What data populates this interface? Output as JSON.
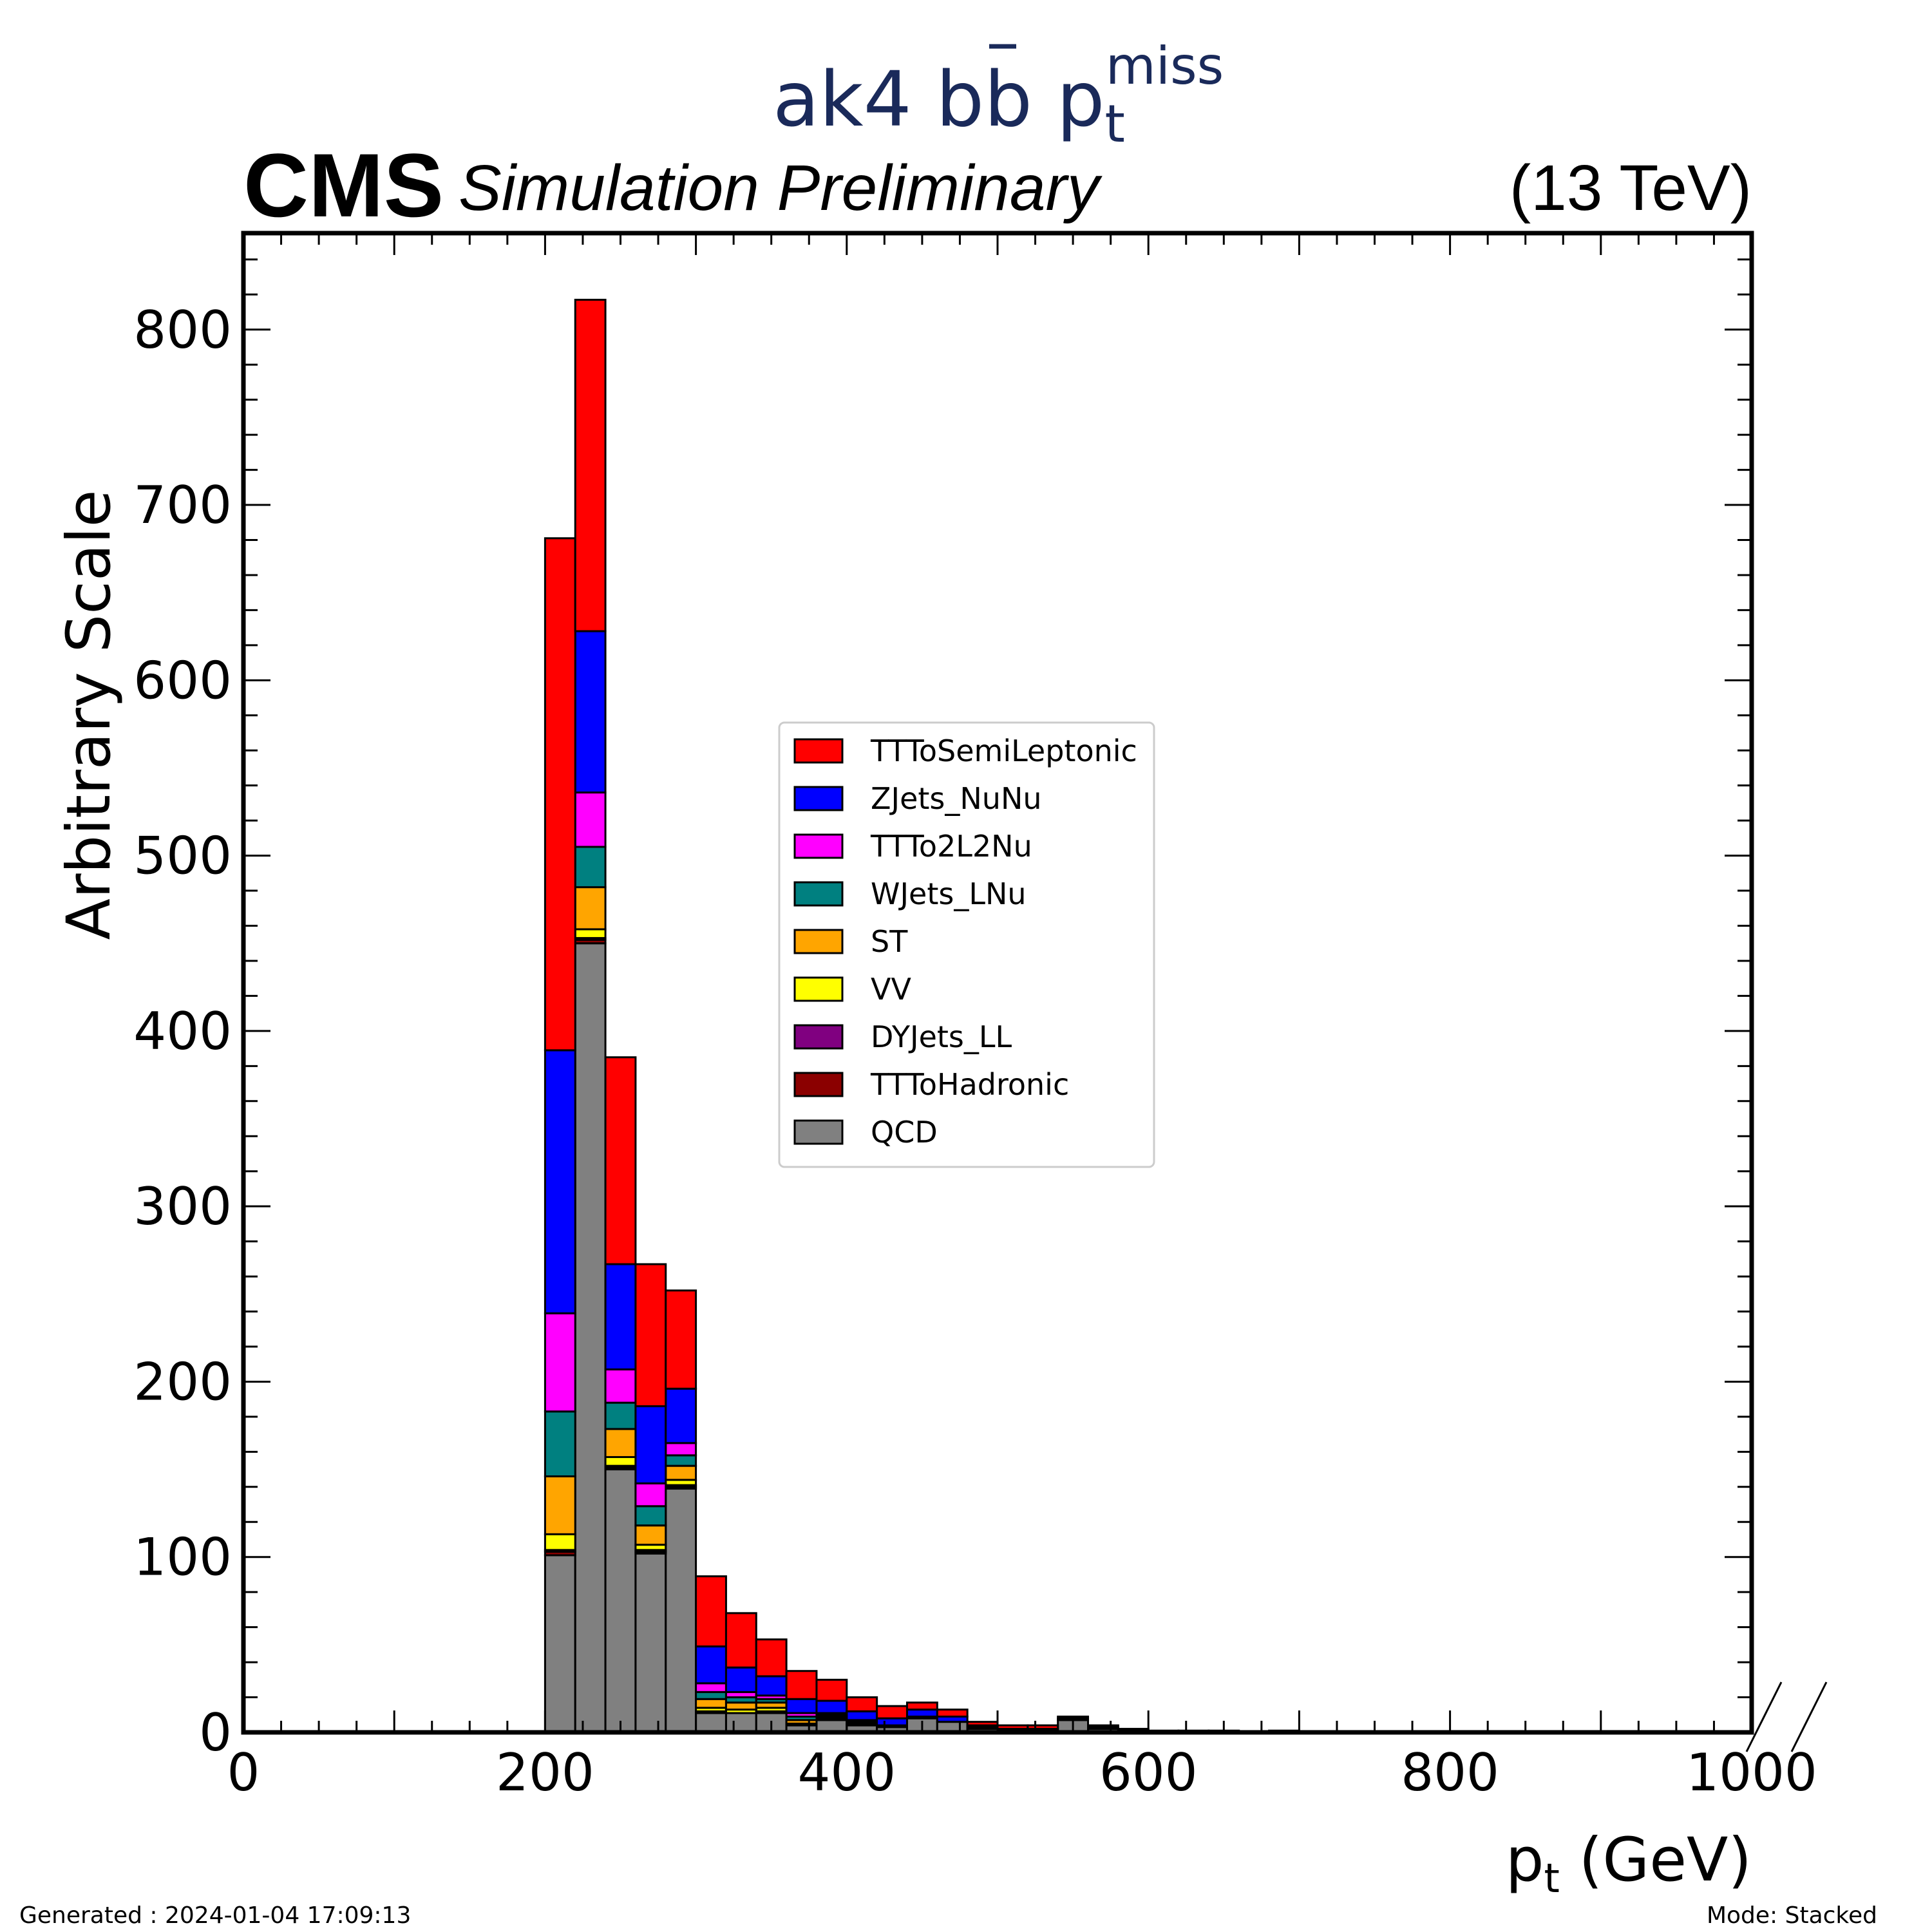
{
  "header": {
    "experiment": "CMS",
    "status": "Simulation Preliminary",
    "energy": "(13 TeV)",
    "title_main": "ak4 b",
    "title_bbar": "b",
    "title_p": "p",
    "title_sub": "t",
    "title_sup": "miss"
  },
  "footer": {
    "generated": "Generated : 2024-01-04 17:09:13",
    "mode": "Mode: Stacked"
  },
  "chart_data": {
    "type": "bar",
    "stacked": true,
    "xlabel_main": "p",
    "xlabel_sub": "t",
    "xlabel_unit": " (GeV)",
    "ylabel": "Arbitrary Scale",
    "xlim": [
      0,
      1000
    ],
    "ylim": [
      0,
      855
    ],
    "x_ticks": [
      0,
      200,
      400,
      600,
      800,
      1000
    ],
    "y_ticks": [
      0,
      100,
      200,
      300,
      400,
      500,
      600,
      700,
      800
    ],
    "bin_edges": [
      200,
      220,
      240,
      260,
      280,
      300,
      320,
      340,
      360,
      380,
      400,
      420,
      440,
      460,
      480,
      500,
      520,
      540,
      560,
      580,
      600,
      620,
      640,
      660,
      680,
      700,
      720,
      740,
      760,
      780,
      800,
      820,
      840
    ],
    "legend_position": "center",
    "series": [
      {
        "name": "QCD",
        "color": "#808080",
        "values": [
          101,
          450,
          150,
          102,
          139,
          11,
          11,
          11,
          4,
          7,
          4,
          3,
          8,
          6,
          2,
          1,
          1,
          7,
          2,
          1,
          0,
          0,
          0,
          0,
          0,
          0,
          0,
          0,
          0,
          0,
          0,
          0
        ]
      },
      {
        "name": "TTToHadronic",
        "color": "#8b0000",
        "values": [
          2,
          2,
          1,
          1,
          1,
          1,
          0,
          1,
          0,
          0,
          0,
          0,
          0,
          0,
          0,
          0,
          0,
          0,
          0,
          0,
          0,
          0,
          0,
          0,
          0,
          0,
          0,
          0,
          0,
          0,
          0,
          0
        ]
      },
      {
        "name": "DYJets_LL",
        "color": "#800080",
        "values": [
          1,
          1,
          1,
          1,
          1,
          0,
          0,
          0,
          0,
          0,
          0,
          0,
          0,
          0,
          0,
          0,
          0,
          0,
          0,
          0,
          0,
          0,
          0,
          0,
          0,
          0,
          0,
          0,
          0,
          0,
          0,
          0
        ]
      },
      {
        "name": "VV",
        "color": "#ffff00",
        "values": [
          9,
          5,
          5,
          3,
          3,
          2,
          2,
          2,
          1,
          1,
          0,
          0,
          0,
          0,
          0,
          0,
          0,
          0,
          0,
          0,
          0,
          0,
          0,
          0,
          0,
          0,
          0,
          0,
          0,
          0,
          0,
          0
        ]
      },
      {
        "name": "ST",
        "color": "#ffa500",
        "values": [
          33,
          24,
          16,
          11,
          8,
          5,
          4,
          3,
          2,
          1,
          1,
          1,
          1,
          0,
          1,
          0,
          0,
          0,
          0,
          0,
          0,
          0,
          0,
          0,
          0,
          0,
          0,
          0,
          0,
          0,
          0,
          0
        ]
      },
      {
        "name": "WJets_LNu",
        "color": "#008080",
        "values": [
          37,
          23,
          15,
          11,
          6,
          4,
          3,
          2,
          2,
          1,
          1,
          0,
          0,
          0,
          0,
          0,
          0,
          0,
          0,
          0,
          0,
          0,
          0,
          0,
          0,
          0,
          0,
          0,
          0,
          0,
          0,
          0
        ]
      },
      {
        "name": "TTTo2L2Nu",
        "color": "#ff00ff",
        "values": [
          56,
          31,
          19,
          13,
          7,
          5,
          3,
          2,
          2,
          1,
          1,
          0,
          0,
          0,
          0,
          0,
          0,
          0,
          0,
          0,
          0,
          0,
          0,
          0,
          0,
          0,
          0,
          0,
          0,
          0,
          0,
          0
        ]
      },
      {
        "name": "ZJets_NuNu",
        "color": "#0000ff",
        "values": [
          150,
          92,
          60,
          44,
          31,
          21,
          14,
          11,
          8,
          7,
          5,
          4,
          4,
          3,
          1,
          1,
          1,
          1,
          1,
          0,
          0,
          0,
          0,
          0,
          0,
          0,
          0,
          0,
          0,
          0,
          0,
          0
        ]
      },
      {
        "name": "TTToSemiLeptonic",
        "color": "#ff0000",
        "values": [
          292,
          189,
          118,
          81,
          56,
          40,
          31,
          21,
          16,
          12,
          8,
          7,
          4,
          4,
          2,
          2,
          2,
          1,
          1,
          1,
          1,
          1,
          1,
          0,
          1,
          0,
          0,
          0,
          0,
          0,
          0,
          0
        ]
      }
    ]
  }
}
